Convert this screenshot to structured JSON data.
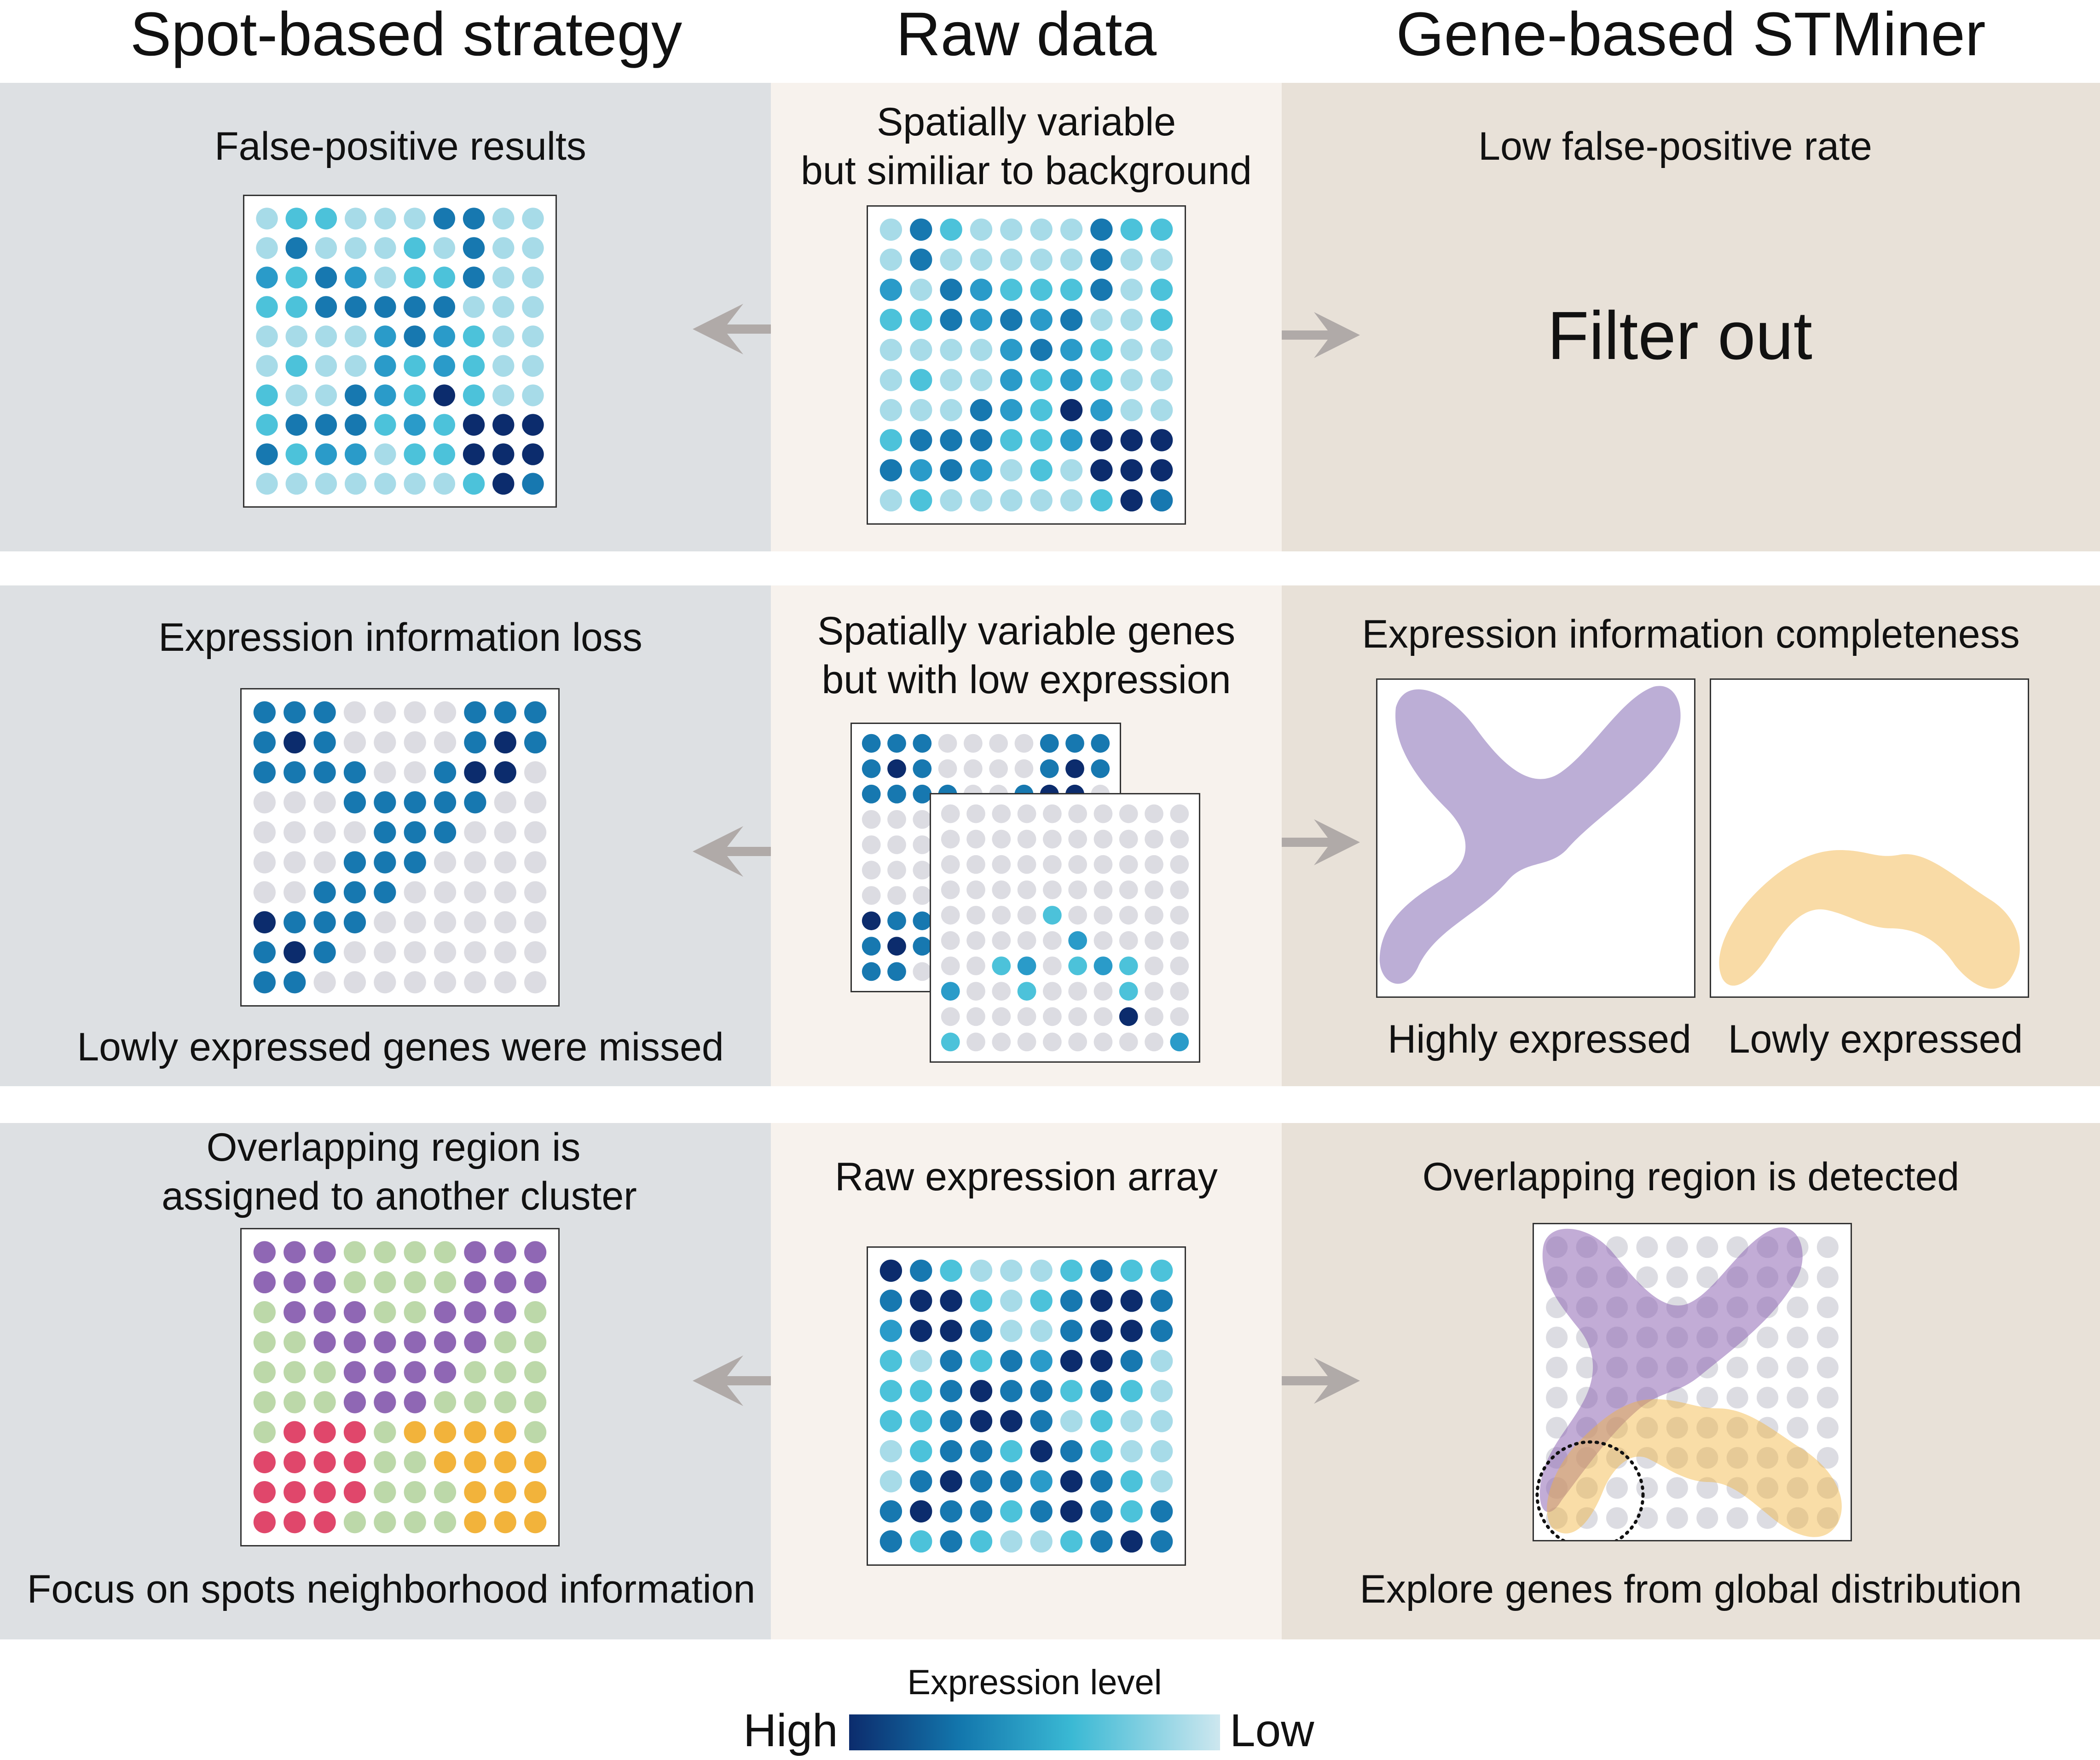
{
  "columns": {
    "left": "Spot-based strategy",
    "middle": "Raw data",
    "right": "Gene-based STMiner"
  },
  "row1": {
    "left_label": "False-positive results",
    "middle_label_1": "Spatially variable",
    "middle_label_2": "but similiar to background",
    "right_label": "Low false-positive rate",
    "right_big": "Filter out"
  },
  "row2": {
    "left_label": "Expression information loss",
    "left_caption": "Lowly expressed genes were missed",
    "middle_label_1": "Spatially variable genes",
    "middle_label_2": "but with low expression",
    "right_label": "Expression information completeness",
    "right_caption_1": "Highly expressed",
    "right_caption_2": "Lowly expressed"
  },
  "row3": {
    "left_label_1": "Overlapping region is",
    "left_label_2": "assigned to another cluster",
    "left_caption": "Focus on spots neighborhood information",
    "middle_label": "Raw expression array",
    "right_label": "Overlapping region is detected",
    "right_caption": "Explore genes from global distribution"
  },
  "legend": {
    "title": "Expression level",
    "high": "High",
    "low": "Low"
  },
  "colors": {
    "expression_scale": [
      "#0c2c6d",
      "#1778b0",
      "#2a9bc9",
      "#4cc2da",
      "#a7dbe8",
      "#cde7ef"
    ],
    "zero_expression": "#dcdce2",
    "cluster_purple": "#8f67b4",
    "cluster_green": "#bcd8a9",
    "cluster_red": "#e0476b",
    "cluster_orange": "#f2b33b",
    "pattern_purple": "#bcaed6",
    "pattern_orange": "#f9dba6",
    "arrow": "#b0aaa8"
  },
  "grids": {
    "r1_left": [
      [
        5,
        4,
        4,
        5,
        5,
        5,
        2,
        2,
        5,
        5
      ],
      [
        5,
        2,
        5,
        5,
        5,
        4,
        5,
        2,
        5,
        5
      ],
      [
        3,
        4,
        2,
        3,
        5,
        4,
        4,
        2,
        5,
        5
      ],
      [
        4,
        4,
        2,
        2,
        2,
        2,
        2,
        5,
        5,
        5
      ],
      [
        5,
        5,
        5,
        5,
        3,
        2,
        3,
        4,
        5,
        5
      ],
      [
        5,
        4,
        5,
        5,
        3,
        4,
        3,
        4,
        5,
        5
      ],
      [
        4,
        5,
        5,
        2,
        3,
        4,
        1,
        4,
        5,
        5
      ],
      [
        4,
        2,
        2,
        2,
        4,
        3,
        4,
        1,
        1,
        1
      ],
      [
        2,
        4,
        3,
        3,
        5,
        4,
        4,
        1,
        1,
        1
      ],
      [
        5,
        5,
        5,
        5,
        5,
        5,
        5,
        4,
        1,
        2
      ]
    ],
    "r1_mid": [
      [
        5,
        2,
        4,
        5,
        5,
        5,
        5,
        2,
        4,
        4
      ],
      [
        5,
        2,
        5,
        5,
        5,
        5,
        5,
        2,
        5,
        5
      ],
      [
        3,
        5,
        2,
        3,
        4,
        4,
        4,
        2,
        5,
        4
      ],
      [
        4,
        4,
        2,
        3,
        2,
        3,
        2,
        5,
        5,
        4
      ],
      [
        5,
        5,
        5,
        5,
        3,
        2,
        3,
        4,
        5,
        5
      ],
      [
        5,
        4,
        5,
        5,
        3,
        4,
        3,
        4,
        5,
        5
      ],
      [
        5,
        5,
        5,
        2,
        3,
        4,
        1,
        3,
        5,
        5
      ],
      [
        4,
        2,
        2,
        2,
        4,
        4,
        3,
        1,
        1,
        1
      ],
      [
        2,
        3,
        2,
        3,
        5,
        4,
        5,
        1,
        1,
        1
      ],
      [
        5,
        4,
        5,
        5,
        5,
        5,
        5,
        4,
        1,
        2
      ]
    ],
    "r2_left": [
      [
        2,
        2,
        2,
        0,
        0,
        0,
        0,
        2,
        2,
        2
      ],
      [
        2,
        1,
        2,
        0,
        0,
        0,
        0,
        2,
        1,
        2
      ],
      [
        2,
        2,
        2,
        2,
        0,
        0,
        2,
        1,
        1,
        0
      ],
      [
        0,
        0,
        0,
        2,
        2,
        2,
        2,
        2,
        0,
        0
      ],
      [
        0,
        0,
        0,
        0,
        2,
        2,
        2,
        0,
        0,
        0
      ],
      [
        0,
        0,
        0,
        2,
        2,
        2,
        0,
        0,
        0,
        0
      ],
      [
        0,
        0,
        2,
        2,
        2,
        0,
        0,
        0,
        0,
        0
      ],
      [
        1,
        2,
        2,
        2,
        0,
        0,
        0,
        0,
        0,
        0
      ],
      [
        2,
        1,
        2,
        0,
        0,
        0,
        0,
        0,
        0,
        0
      ],
      [
        2,
        2,
        0,
        0,
        0,
        0,
        0,
        0,
        0,
        0
      ]
    ],
    "r2_mid_back": [
      [
        2,
        2,
        2,
        0,
        0,
        0,
        0,
        2,
        2,
        2
      ],
      [
        2,
        1,
        2,
        0,
        0,
        0,
        0,
        2,
        1,
        2
      ],
      [
        2,
        2,
        2,
        2,
        0,
        0,
        2,
        1,
        1,
        0
      ],
      [
        0,
        0,
        0,
        2,
        2,
        2,
        2,
        2,
        0,
        0
      ],
      [
        0,
        0,
        0,
        0,
        2,
        2,
        2,
        0,
        0,
        0
      ],
      [
        0,
        0,
        0,
        0,
        0,
        2,
        2,
        0,
        0,
        0
      ],
      [
        0,
        0,
        0,
        2,
        2,
        2,
        0,
        0,
        0,
        0
      ],
      [
        1,
        2,
        2,
        2,
        0,
        0,
        0,
        0,
        0,
        0
      ],
      [
        2,
        1,
        2,
        0,
        0,
        0,
        0,
        0,
        0,
        0
      ],
      [
        2,
        2,
        0,
        0,
        0,
        0,
        0,
        0,
        0,
        0
      ]
    ],
    "r2_mid_front": [
      [
        0,
        0,
        0,
        0,
        0,
        0,
        0,
        0,
        0,
        0
      ],
      [
        0,
        0,
        0,
        0,
        0,
        0,
        0,
        0,
        0,
        0
      ],
      [
        0,
        0,
        0,
        0,
        0,
        0,
        0,
        0,
        0,
        0
      ],
      [
        0,
        0,
        0,
        0,
        0,
        0,
        0,
        0,
        0,
        0
      ],
      [
        0,
        0,
        0,
        0,
        4,
        0,
        0,
        0,
        0,
        0
      ],
      [
        0,
        0,
        0,
        0,
        0,
        3,
        0,
        0,
        0,
        0
      ],
      [
        0,
        0,
        4,
        3,
        0,
        4,
        3,
        4,
        0,
        0
      ],
      [
        3,
        0,
        0,
        4,
        0,
        0,
        0,
        4,
        0,
        0
      ],
      [
        0,
        0,
        0,
        0,
        0,
        0,
        0,
        1,
        0,
        0
      ],
      [
        4,
        0,
        0,
        0,
        0,
        0,
        0,
        0,
        0,
        3
      ]
    ],
    "r3_left": [
      [
        "p",
        "p",
        "p",
        "g",
        "g",
        "g",
        "g",
        "p",
        "p",
        "p"
      ],
      [
        "p",
        "p",
        "p",
        "g",
        "g",
        "g",
        "g",
        "p",
        "p",
        "p"
      ],
      [
        "g",
        "p",
        "p",
        "p",
        "g",
        "g",
        "p",
        "p",
        "p",
        "g"
      ],
      [
        "g",
        "g",
        "p",
        "p",
        "p",
        "p",
        "p",
        "p",
        "g",
        "g"
      ],
      [
        "g",
        "g",
        "g",
        "p",
        "p",
        "p",
        "p",
        "g",
        "g",
        "g"
      ],
      [
        "g",
        "g",
        "g",
        "p",
        "p",
        "p",
        "g",
        "g",
        "g",
        "g"
      ],
      [
        "g",
        "r",
        "r",
        "r",
        "g",
        "o",
        "o",
        "o",
        "o",
        "g"
      ],
      [
        "r",
        "r",
        "r",
        "r",
        "g",
        "g",
        "o",
        "o",
        "o",
        "o"
      ],
      [
        "r",
        "r",
        "r",
        "r",
        "g",
        "g",
        "g",
        "o",
        "o",
        "o"
      ],
      [
        "r",
        "r",
        "r",
        "g",
        "g",
        "g",
        "g",
        "o",
        "o",
        "o"
      ]
    ],
    "r3_mid": [
      [
        1,
        2,
        4,
        5,
        5,
        5,
        4,
        2,
        4,
        4
      ],
      [
        2,
        1,
        1,
        4,
        5,
        4,
        2,
        1,
        1,
        2
      ],
      [
        3,
        1,
        1,
        2,
        5,
        5,
        2,
        1,
        1,
        2
      ],
      [
        4,
        5,
        2,
        4,
        2,
        3,
        1,
        1,
        2,
        5
      ],
      [
        4,
        4,
        2,
        1,
        2,
        2,
        4,
        2,
        4,
        5
      ],
      [
        4,
        4,
        2,
        1,
        1,
        2,
        5,
        4,
        5,
        5
      ],
      [
        5,
        4,
        2,
        2,
        4,
        1,
        2,
        4,
        5,
        5
      ],
      [
        5,
        2,
        1,
        2,
        2,
        3,
        1,
        2,
        4,
        5
      ],
      [
        2,
        1,
        2,
        2,
        4,
        2,
        1,
        2,
        4,
        2
      ],
      [
        2,
        4,
        2,
        4,
        5,
        5,
        4,
        2,
        1,
        2
      ]
    ]
  }
}
